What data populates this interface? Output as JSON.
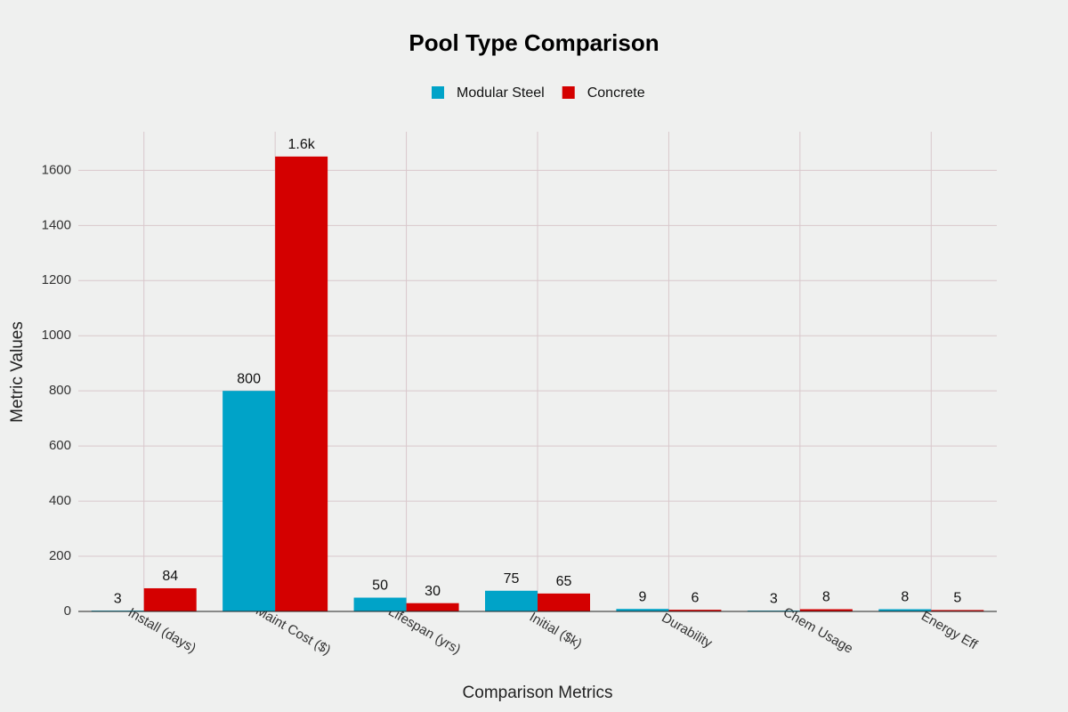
{
  "chart_data": {
    "type": "bar",
    "title": "Pool Type Comparison",
    "x_label": "Comparison Metrics",
    "y_label": "Metric Values",
    "categories": [
      "Install (days)",
      "Maint Cost ($)",
      "Lifespan (yrs)",
      "Initial ($k)",
      "Durability",
      "Chem Usage",
      "Energy Eff"
    ],
    "series": [
      {
        "name": "Modular Steel",
        "color": "#00a3c8",
        "values": [
          3,
          800,
          50,
          75,
          9,
          3,
          8
        ]
      },
      {
        "name": "Concrete",
        "color": "#d40000",
        "values": [
          84,
          1650,
          30,
          65,
          6,
          8,
          5
        ],
        "value_labels": [
          "84",
          "1.6k",
          "30",
          "65",
          "6",
          "8",
          "5"
        ]
      }
    ],
    "ylim": [
      0,
      1740
    ],
    "yticks": [
      0,
      200,
      400,
      600,
      800,
      1000,
      1200,
      1400,
      1600
    ],
    "grid": true,
    "legend": "top"
  }
}
